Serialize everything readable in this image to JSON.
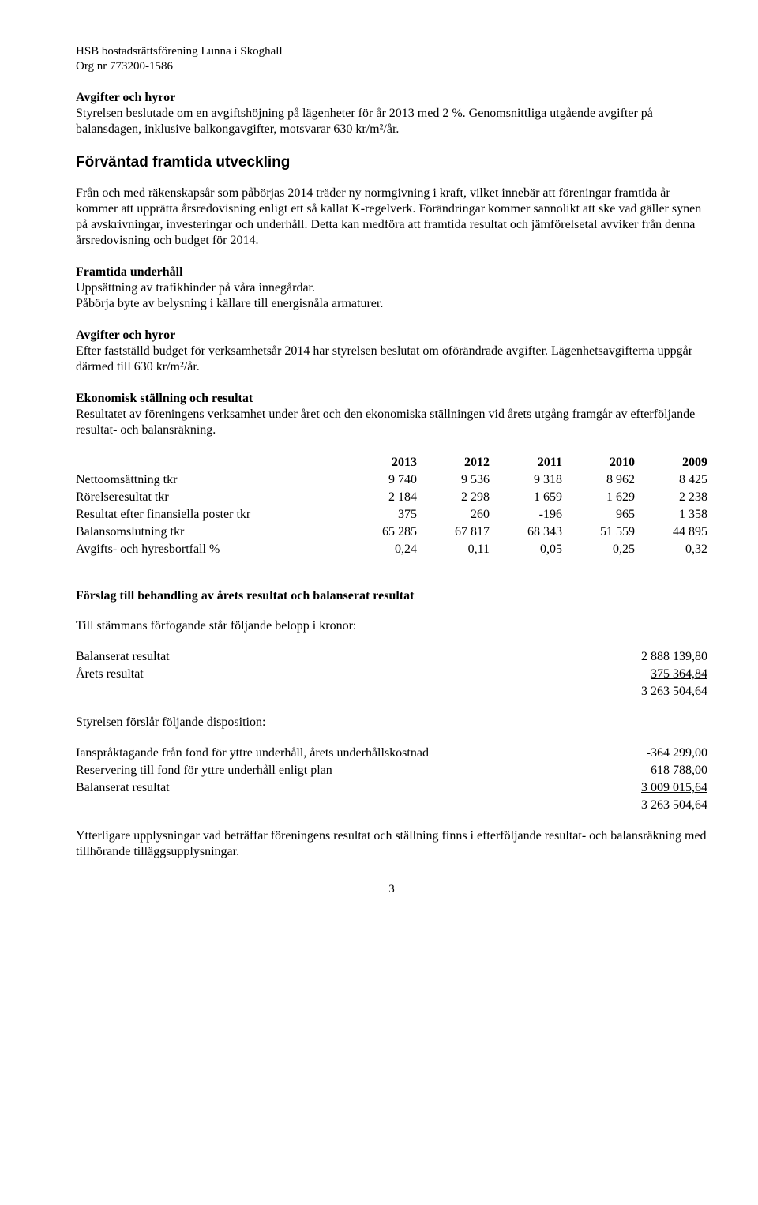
{
  "header": {
    "org_name": "HSB bostadsrättsförening Lunna i Skoghall",
    "org_nr_label": "Org nr 773200-1586"
  },
  "s1": {
    "title": "Avgifter och hyror",
    "body": "Styrelsen beslutade om en avgiftshöjning på lägenheter för år 2013 med 2 %. Genomsnittliga utgående avgifter på balansdagen, inklusive balkongavgifter, motsvarar 630 kr/m²/år."
  },
  "s2": {
    "title": "Förväntad framtida utveckling",
    "p1": "Från och med räkenskapsår som påbörjas 2014 träder ny normgivning i kraft, vilket innebär att föreningar framtida år kommer att upprätta årsredovisning enligt ett så kallat K-regelverk. Förändringar kommer sannolikt att ske vad gäller synen på avskrivningar, investeringar och underhåll. Detta kan medföra att framtida resultat och jämförelsetal avviker från denna årsredovisning och budget för 2014."
  },
  "s3": {
    "title": "Framtida underhåll",
    "l1": "Uppsättning av trafikhinder på våra innegårdar.",
    "l2": "Påbörja byte av belysning i källare till energisnåla armaturer."
  },
  "s4": {
    "title": "Avgifter och hyror",
    "l1": "Efter fastställd budget för verksamhetsår 2014 har styrelsen beslutat om oförändrade avgifter. Lägenhetsavgifterna uppgår därmed till 630 kr/m²/år."
  },
  "s5": {
    "title": "Ekonomisk ställning och resultat",
    "body": "Resultatet av föreningens verksamhet under året och den ekonomiska ställningen vid årets utgång framgår av efterföljande resultat- och balansräkning."
  },
  "table": {
    "years": [
      "2013",
      "2012",
      "2011",
      "2010",
      "2009"
    ],
    "rows": [
      {
        "label": "Nettoomsättning tkr",
        "v": [
          "9 740",
          "9 536",
          "9 318",
          "8 962",
          "8 425"
        ]
      },
      {
        "label": "Rörelseresultat tkr",
        "v": [
          "2 184",
          "2 298",
          "1 659",
          "1 629",
          "2 238"
        ]
      },
      {
        "label": "Resultat efter finansiella poster tkr",
        "v": [
          "375",
          "260",
          "-196",
          "965",
          "1 358"
        ]
      },
      {
        "label": "Balansomslutning tkr",
        "v": [
          "65 285",
          "67 817",
          "68 343",
          "51 559",
          "44 895"
        ]
      },
      {
        "label": "Avgifts- och hyresbortfall %",
        "v": [
          "0,24",
          "0,11",
          "0,05",
          "0,25",
          "0,32"
        ]
      }
    ]
  },
  "s6": {
    "title": "Förslag till behandling av årets resultat och balanserat resultat",
    "intro": "Till stämmans förfogande står följande belopp i kronor:"
  },
  "dispo1": {
    "rows": [
      {
        "label": "Balanserat resultat",
        "val": "2 888 139,80"
      },
      {
        "label": "Årets resultat",
        "val": "375 364,84",
        "underline": true
      },
      {
        "label": "",
        "val": "3 263 504,64"
      }
    ]
  },
  "dispo_mid": "Styrelsen förslår följande disposition:",
  "dispo2": {
    "rows": [
      {
        "label": "Ianspråktagande från fond för yttre underhåll, årets underhållskostnad",
        "val": "-364 299,00"
      },
      {
        "label": "Reservering till fond för yttre underhåll enligt plan",
        "val": "618 788,00"
      },
      {
        "label": "Balanserat resultat",
        "val": "3 009 015,64",
        "underline": true
      },
      {
        "label": "",
        "val": "3 263 504,64"
      }
    ]
  },
  "closing": "Ytterligare upplysningar vad beträffar föreningens resultat och ställning finns i efterföljande resultat- och balansräkning med tillhörande tilläggsupplysningar.",
  "page_number": "3"
}
